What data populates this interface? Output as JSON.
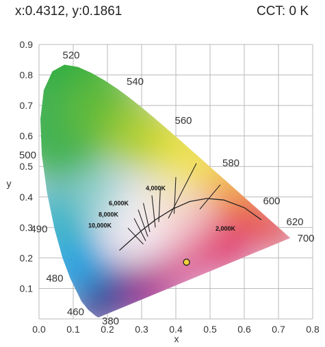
{
  "header": {
    "xy_readout": "x:0.4312, y:0.1861",
    "cct_readout": "CCT: 0 K"
  },
  "chart_data": {
    "type": "scatter",
    "xlabel": "x",
    "ylabel": "y",
    "xlim": [
      0,
      0.8
    ],
    "ylim": [
      0,
      0.9
    ],
    "x_ticks": [
      "0.0",
      "0.1",
      "0.2",
      "0.3",
      "0.4",
      "0.5",
      "0.6",
      "0.7",
      "0.8"
    ],
    "y_ticks": [
      "0.1",
      "0.2",
      "0.3",
      "0.4",
      "0.5",
      "0.6",
      "0.7",
      "0.8",
      "0.9"
    ],
    "grid": true,
    "locus_wavelength_labels": [
      {
        "text": "380",
        "x": 0.174,
        "y": 0.005
      },
      {
        "text": "460",
        "x": 0.144,
        "y": 0.03
      },
      {
        "text": "480",
        "x": 0.091,
        "y": 0.133
      },
      {
        "text": "490",
        "x": 0.045,
        "y": 0.295
      },
      {
        "text": "500",
        "x": 0.008,
        "y": 0.538
      },
      {
        "text": "520",
        "x": 0.074,
        "y": 0.834
      },
      {
        "text": "540",
        "x": 0.23,
        "y": 0.754
      },
      {
        "text": "560",
        "x": 0.373,
        "y": 0.624
      },
      {
        "text": "580",
        "x": 0.512,
        "y": 0.487
      },
      {
        "text": "600",
        "x": 0.627,
        "y": 0.372
      },
      {
        "text": "620",
        "x": 0.691,
        "y": 0.308
      },
      {
        "text": "700",
        "x": 0.735,
        "y": 0.265
      }
    ],
    "cct_labels": [
      "10,000K",
      "8,000K",
      "6,000K",
      "4,000K",
      "2,000K"
    ],
    "point": {
      "x": 0.4312,
      "y": 0.1861,
      "color": "#f5d23a"
    }
  }
}
